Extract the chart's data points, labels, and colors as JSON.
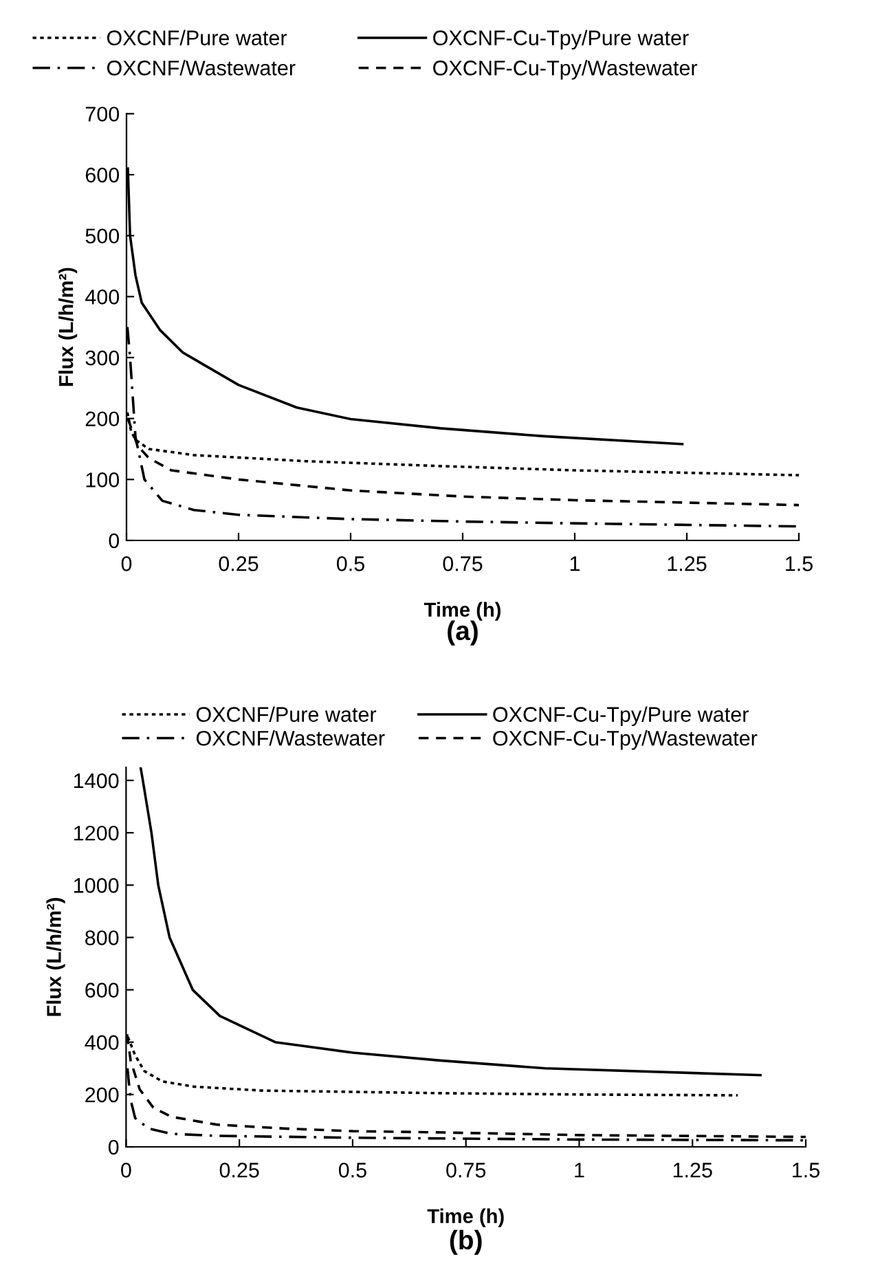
{
  "chart_data": [
    {
      "type": "line",
      "title": "(a)",
      "xlabel": "Time (h)",
      "ylabel": "Flux (L/h/m²)",
      "xlim": [
        0,
        1.5
      ],
      "xticks": [
        0,
        0.25,
        0.5,
        0.75,
        1,
        1.25,
        1.5
      ],
      "ylim": [
        0,
        700
      ],
      "yticks": [
        0,
        100,
        200,
        300,
        400,
        500,
        600,
        700
      ],
      "grid": false,
      "legend": "top",
      "marker": "none",
      "series": [
        {
          "name": "OXCNF/Pure water",
          "color": "#000000",
          "line_style": "dotted",
          "x": [
            0.002,
            0.01,
            0.02,
            0.05,
            0.15,
            0.4,
            0.7,
            1.0,
            1.5
          ],
          "values": [
            210,
            180,
            165,
            150,
            140,
            130,
            122,
            115,
            107
          ]
        },
        {
          "name": "OXCNF/Wastewater",
          "color": "#000000",
          "line_style": "dashdot",
          "x": [
            0.002,
            0.008,
            0.02,
            0.04,
            0.08,
            0.15,
            0.25,
            0.5,
            0.75,
            1.0,
            1.5
          ],
          "values": [
            350,
            300,
            170,
            100,
            65,
            50,
            42,
            35,
            31,
            28,
            23
          ]
        },
        {
          "name": "OXCNF-Cu-Tpy/Pure water",
          "color": "#000000",
          "line_style": "solid",
          "x": [
            0.003,
            0.008,
            0.02,
            0.034,
            0.075,
            0.126,
            0.25,
            0.38,
            0.5,
            0.7,
            0.93,
            1.24
          ],
          "values": [
            610,
            500,
            435,
            390,
            345,
            308,
            255,
            218,
            199,
            184,
            171,
            158
          ]
        },
        {
          "name": "OXCNF-Cu-Tpy/Wastewater",
          "color": "#000000",
          "line_style": "dashed",
          "x": [
            0.003,
            0.025,
            0.05,
            0.1,
            0.25,
            0.5,
            0.75,
            1.0,
            1.5
          ],
          "values": [
            200,
            155,
            135,
            115,
            100,
            82,
            72,
            66,
            58
          ]
        }
      ]
    },
    {
      "type": "line",
      "title": "(b)",
      "xlabel": "Time (h)",
      "ylabel": "Flux (L/h/m²)",
      "xlim": [
        0,
        1.5
      ],
      "xticks": [
        0,
        0.25,
        0.5,
        0.75,
        1,
        1.25,
        1.5
      ],
      "ylim": [
        0,
        1450
      ],
      "yticks": [
        0,
        200,
        400,
        600,
        800,
        1000,
        1200,
        1400
      ],
      "grid": false,
      "legend": "top",
      "marker": "none",
      "series": [
        {
          "name": "OXCNF/Pure water",
          "color": "#000000",
          "line_style": "dotted",
          "x": [
            0.004,
            0.02,
            0.04,
            0.08,
            0.15,
            0.3,
            0.5,
            0.7,
            1.0,
            1.35
          ],
          "values": [
            420,
            350,
            290,
            250,
            230,
            215,
            210,
            205,
            200,
            197
          ]
        },
        {
          "name": "OXCNF/Wastewater",
          "color": "#000000",
          "line_style": "dashdot",
          "x": [
            0.003,
            0.01,
            0.02,
            0.05,
            0.1,
            0.2,
            0.5,
            0.7,
            1.0,
            1.5
          ],
          "values": [
            300,
            180,
            110,
            70,
            50,
            42,
            35,
            32,
            28,
            25
          ]
        },
        {
          "name": "OXCNF-Cu-Tpy/Pure water",
          "color": "#000000",
          "line_style": "solid",
          "x": [
            0.032,
            0.037,
            0.056,
            0.071,
            0.096,
            0.147,
            0.207,
            0.329,
            0.5,
            0.693,
            0.925,
            1.4
          ],
          "values": [
            1450,
            1400,
            1200,
            1000,
            800,
            600,
            500,
            400,
            360,
            330,
            300,
            274
          ]
        },
        {
          "name": "OXCNF-Cu-Tpy/Wastewater",
          "color": "#000000",
          "line_style": "dashed",
          "x": [
            0.002,
            0.01,
            0.03,
            0.06,
            0.1,
            0.2,
            0.35,
            0.5,
            0.7,
            1.0,
            1.5
          ],
          "values": [
            430,
            330,
            220,
            150,
            115,
            85,
            70,
            60,
            55,
            45,
            38
          ]
        }
      ]
    }
  ]
}
